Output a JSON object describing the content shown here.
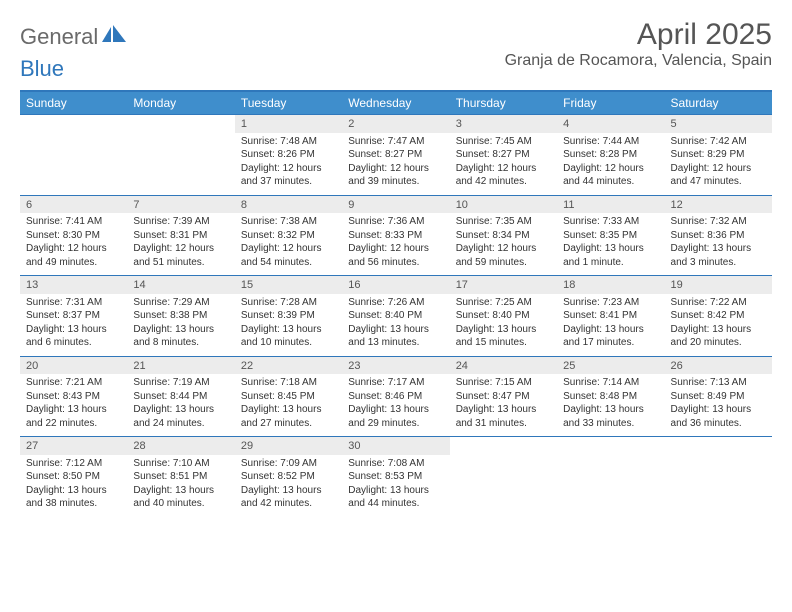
{
  "logo": {
    "text1": "General",
    "text2": "Blue"
  },
  "title": "April 2025",
  "location": "Granja de Rocamora, Valencia, Spain",
  "colors": {
    "header_bg": "#3f8ecc",
    "header_text": "#ffffff",
    "daynum_bg": "#ececec",
    "border": "#2f77bb",
    "title_color": "#555555"
  },
  "days_of_week": [
    "Sunday",
    "Monday",
    "Tuesday",
    "Wednesday",
    "Thursday",
    "Friday",
    "Saturday"
  ],
  "grid": [
    [
      null,
      null,
      {
        "n": "1",
        "sr": "7:48 AM",
        "ss": "8:26 PM",
        "dl": "12 hours and 37 minutes."
      },
      {
        "n": "2",
        "sr": "7:47 AM",
        "ss": "8:27 PM",
        "dl": "12 hours and 39 minutes."
      },
      {
        "n": "3",
        "sr": "7:45 AM",
        "ss": "8:27 PM",
        "dl": "12 hours and 42 minutes."
      },
      {
        "n": "4",
        "sr": "7:44 AM",
        "ss": "8:28 PM",
        "dl": "12 hours and 44 minutes."
      },
      {
        "n": "5",
        "sr": "7:42 AM",
        "ss": "8:29 PM",
        "dl": "12 hours and 47 minutes."
      }
    ],
    [
      {
        "n": "6",
        "sr": "7:41 AM",
        "ss": "8:30 PM",
        "dl": "12 hours and 49 minutes."
      },
      {
        "n": "7",
        "sr": "7:39 AM",
        "ss": "8:31 PM",
        "dl": "12 hours and 51 minutes."
      },
      {
        "n": "8",
        "sr": "7:38 AM",
        "ss": "8:32 PM",
        "dl": "12 hours and 54 minutes."
      },
      {
        "n": "9",
        "sr": "7:36 AM",
        "ss": "8:33 PM",
        "dl": "12 hours and 56 minutes."
      },
      {
        "n": "10",
        "sr": "7:35 AM",
        "ss": "8:34 PM",
        "dl": "12 hours and 59 minutes."
      },
      {
        "n": "11",
        "sr": "7:33 AM",
        "ss": "8:35 PM",
        "dl": "13 hours and 1 minute."
      },
      {
        "n": "12",
        "sr": "7:32 AM",
        "ss": "8:36 PM",
        "dl": "13 hours and 3 minutes."
      }
    ],
    [
      {
        "n": "13",
        "sr": "7:31 AM",
        "ss": "8:37 PM",
        "dl": "13 hours and 6 minutes."
      },
      {
        "n": "14",
        "sr": "7:29 AM",
        "ss": "8:38 PM",
        "dl": "13 hours and 8 minutes."
      },
      {
        "n": "15",
        "sr": "7:28 AM",
        "ss": "8:39 PM",
        "dl": "13 hours and 10 minutes."
      },
      {
        "n": "16",
        "sr": "7:26 AM",
        "ss": "8:40 PM",
        "dl": "13 hours and 13 minutes."
      },
      {
        "n": "17",
        "sr": "7:25 AM",
        "ss": "8:40 PM",
        "dl": "13 hours and 15 minutes."
      },
      {
        "n": "18",
        "sr": "7:23 AM",
        "ss": "8:41 PM",
        "dl": "13 hours and 17 minutes."
      },
      {
        "n": "19",
        "sr": "7:22 AM",
        "ss": "8:42 PM",
        "dl": "13 hours and 20 minutes."
      }
    ],
    [
      {
        "n": "20",
        "sr": "7:21 AM",
        "ss": "8:43 PM",
        "dl": "13 hours and 22 minutes."
      },
      {
        "n": "21",
        "sr": "7:19 AM",
        "ss": "8:44 PM",
        "dl": "13 hours and 24 minutes."
      },
      {
        "n": "22",
        "sr": "7:18 AM",
        "ss": "8:45 PM",
        "dl": "13 hours and 27 minutes."
      },
      {
        "n": "23",
        "sr": "7:17 AM",
        "ss": "8:46 PM",
        "dl": "13 hours and 29 minutes."
      },
      {
        "n": "24",
        "sr": "7:15 AM",
        "ss": "8:47 PM",
        "dl": "13 hours and 31 minutes."
      },
      {
        "n": "25",
        "sr": "7:14 AM",
        "ss": "8:48 PM",
        "dl": "13 hours and 33 minutes."
      },
      {
        "n": "26",
        "sr": "7:13 AM",
        "ss": "8:49 PM",
        "dl": "13 hours and 36 minutes."
      }
    ],
    [
      {
        "n": "27",
        "sr": "7:12 AM",
        "ss": "8:50 PM",
        "dl": "13 hours and 38 minutes."
      },
      {
        "n": "28",
        "sr": "7:10 AM",
        "ss": "8:51 PM",
        "dl": "13 hours and 40 minutes."
      },
      {
        "n": "29",
        "sr": "7:09 AM",
        "ss": "8:52 PM",
        "dl": "13 hours and 42 minutes."
      },
      {
        "n": "30",
        "sr": "7:08 AM",
        "ss": "8:53 PM",
        "dl": "13 hours and 44 minutes."
      },
      null,
      null,
      null
    ]
  ],
  "labels": {
    "sunrise": "Sunrise:",
    "sunset": "Sunset:",
    "daylight": "Daylight:"
  }
}
